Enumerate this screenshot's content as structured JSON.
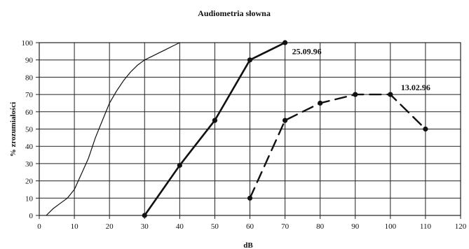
{
  "chart_data": {
    "type": "line",
    "title": "Audiometria słowna",
    "xlabel": "dB",
    "ylabel": "% zrozumiałości",
    "xlim": [
      0,
      120
    ],
    "ylim": [
      0,
      100
    ],
    "x_ticks": [
      0,
      10,
      20,
      30,
      40,
      50,
      60,
      70,
      80,
      90,
      100,
      110,
      120
    ],
    "y_ticks": [
      0,
      10,
      20,
      30,
      40,
      50,
      60,
      70,
      80,
      90,
      100
    ],
    "grid": true,
    "series": [
      {
        "style": "solid-thin",
        "marker": false,
        "points": [
          [
            2,
            0
          ],
          [
            3,
            2
          ],
          [
            4,
            4
          ],
          [
            6,
            7
          ],
          [
            8,
            10
          ],
          [
            10,
            15
          ],
          [
            12,
            24
          ],
          [
            14,
            33
          ],
          [
            16,
            45
          ],
          [
            18,
            55
          ],
          [
            20,
            65
          ],
          [
            22,
            72
          ],
          [
            24,
            78
          ],
          [
            26,
            83
          ],
          [
            28,
            87
          ],
          [
            30,
            90
          ],
          [
            32,
            92
          ],
          [
            34,
            94
          ],
          [
            36,
            96
          ],
          [
            38,
            98
          ],
          [
            40,
            100
          ]
        ]
      },
      {
        "style": "solid-thick",
        "marker": true,
        "points": [
          [
            30,
            0
          ],
          [
            40,
            29
          ],
          [
            50,
            55
          ],
          [
            60,
            90
          ],
          [
            70,
            100
          ]
        ]
      },
      {
        "style": "dashed-thick",
        "marker": true,
        "points": [
          [
            60,
            10
          ],
          [
            70,
            55
          ],
          [
            80,
            65
          ],
          [
            90,
            70
          ],
          [
            100,
            70
          ],
          [
            110,
            50
          ]
        ]
      }
    ],
    "annotations": [
      {
        "text": "25.09.96",
        "x": 72,
        "y": 95
      },
      {
        "text": "13.02.96",
        "x": 103,
        "y": 74
      }
    ],
    "colors": {
      "line": "#111111",
      "grid": "#222222",
      "frame": "#222222"
    }
  }
}
